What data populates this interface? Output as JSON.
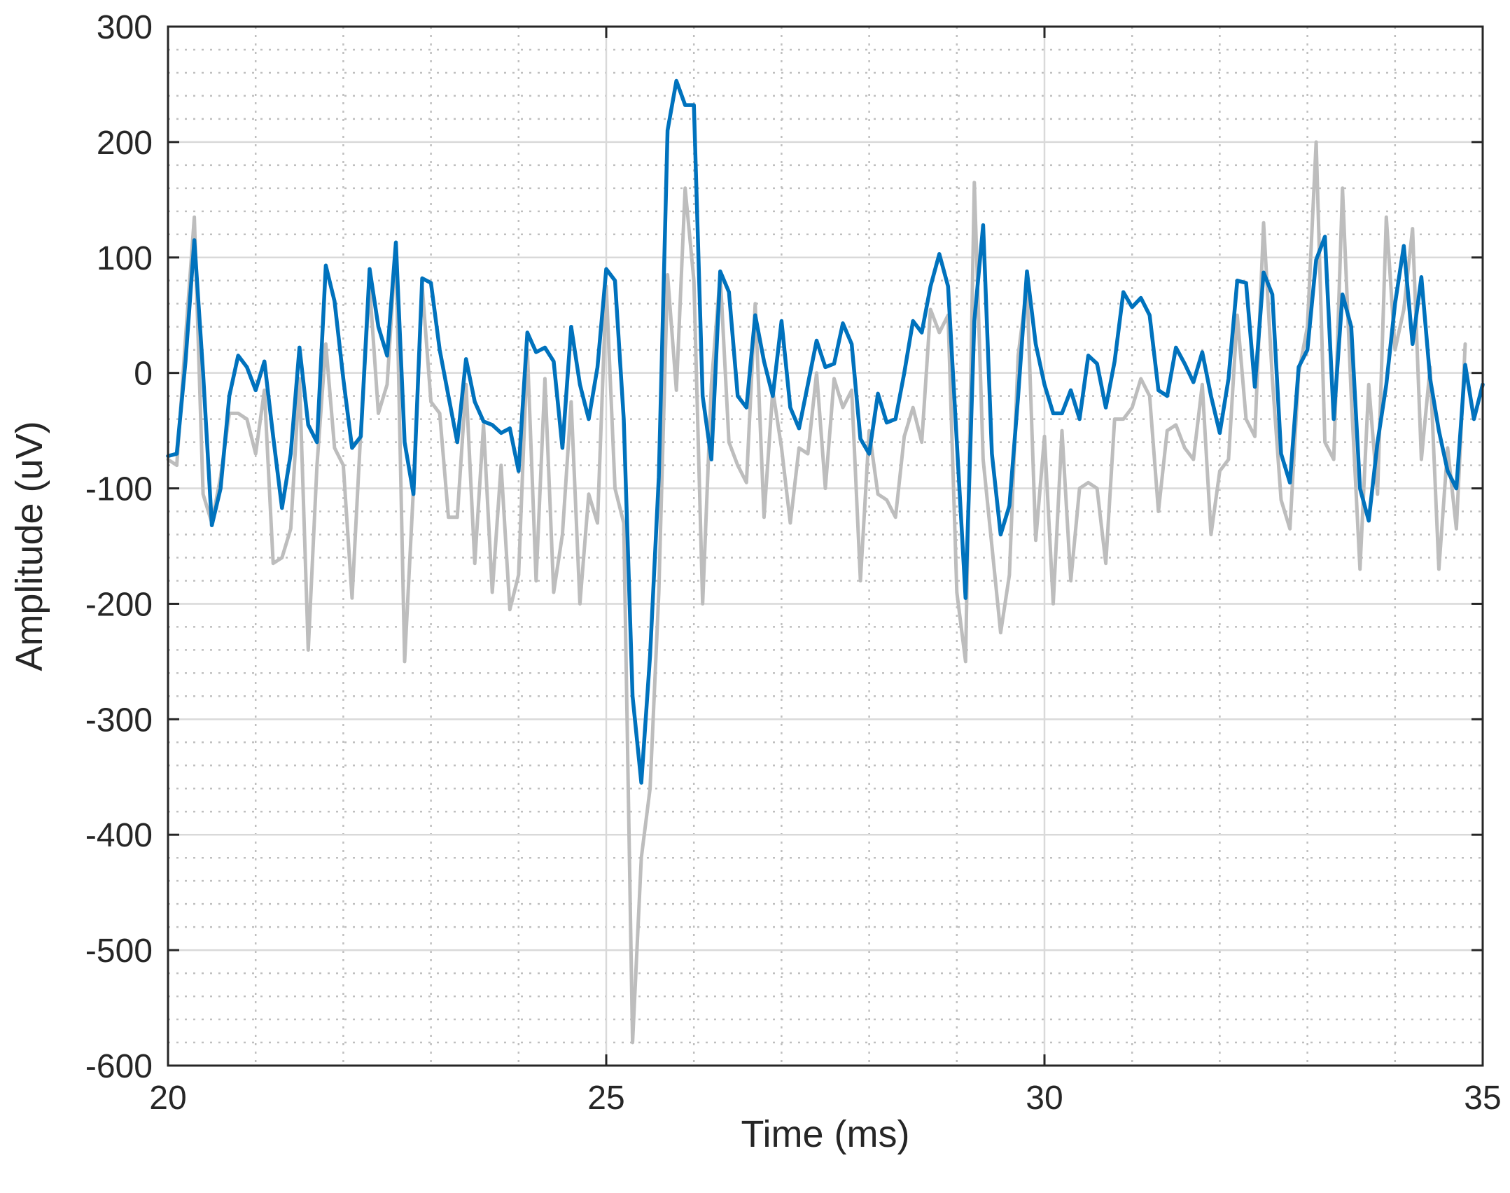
{
  "chart_data": {
    "type": "line",
    "title": "",
    "xlabel": "Time (ms)",
    "ylabel": "Amplitude (uV)",
    "xlim": [
      20,
      35
    ],
    "ylim": [
      -600,
      300
    ],
    "x_ticks": [
      20,
      25,
      30,
      35
    ],
    "x_tick_labels": [
      "20",
      "25",
      "30",
      "35"
    ],
    "y_ticks": [
      300,
      200,
      100,
      0,
      -100,
      -200,
      -300,
      -400,
      -500,
      -600
    ],
    "y_tick_labels": [
      "300",
      "200",
      "100",
      "0",
      "-100",
      "-200",
      "-300",
      "-400",
      "-500",
      "-600"
    ],
    "x_minor_step": 1,
    "y_minor_step": 20,
    "grid": true,
    "legend": "none",
    "series": [
      {
        "color": "#bdbdbd",
        "points": [
          [
            20.0,
            -75
          ],
          [
            20.1,
            -80
          ],
          [
            20.2,
            30
          ],
          [
            20.3,
            135
          ],
          [
            20.4,
            -105
          ],
          [
            20.5,
            -130
          ],
          [
            20.6,
            -90
          ],
          [
            20.7,
            -35
          ],
          [
            20.8,
            -35
          ],
          [
            20.9,
            -40
          ],
          [
            21.0,
            -70
          ],
          [
            21.1,
            -15
          ],
          [
            21.2,
            -165
          ],
          [
            21.3,
            -160
          ],
          [
            21.4,
            -135
          ],
          [
            21.5,
            -5
          ],
          [
            21.6,
            -240
          ],
          [
            21.7,
            -80
          ],
          [
            21.8,
            25
          ],
          [
            21.9,
            -65
          ],
          [
            22.0,
            -80
          ],
          [
            22.1,
            -195
          ],
          [
            22.2,
            -50
          ],
          [
            22.3,
            75
          ],
          [
            22.4,
            -35
          ],
          [
            22.5,
            -10
          ],
          [
            22.6,
            110
          ],
          [
            22.7,
            -250
          ],
          [
            22.8,
            -100
          ],
          [
            22.9,
            75
          ],
          [
            23.0,
            -25
          ],
          [
            23.1,
            -35
          ],
          [
            23.2,
            -125
          ],
          [
            23.3,
            -125
          ],
          [
            23.4,
            -10
          ],
          [
            23.5,
            -165
          ],
          [
            23.6,
            -45
          ],
          [
            23.7,
            -190
          ],
          [
            23.8,
            -80
          ],
          [
            23.9,
            -205
          ],
          [
            24.0,
            -175
          ],
          [
            24.1,
            20
          ],
          [
            24.2,
            -180
          ],
          [
            24.3,
            -5
          ],
          [
            24.4,
            -190
          ],
          [
            24.5,
            -140
          ],
          [
            24.6,
            -25
          ],
          [
            24.7,
            -200
          ],
          [
            24.8,
            -105
          ],
          [
            24.9,
            -130
          ],
          [
            25.0,
            75
          ],
          [
            25.1,
            -100
          ],
          [
            25.2,
            -130
          ],
          [
            25.3,
            -580
          ],
          [
            25.4,
            -420
          ],
          [
            25.5,
            -360
          ],
          [
            25.6,
            -190
          ],
          [
            25.7,
            85
          ],
          [
            25.8,
            -15
          ],
          [
            25.9,
            160
          ],
          [
            26.0,
            80
          ],
          [
            26.1,
            -200
          ],
          [
            26.2,
            -10
          ],
          [
            26.3,
            85
          ],
          [
            26.4,
            -60
          ],
          [
            26.5,
            -80
          ],
          [
            26.6,
            -95
          ],
          [
            26.7,
            60
          ],
          [
            26.8,
            -125
          ],
          [
            26.9,
            -15
          ],
          [
            27.0,
            -65
          ],
          [
            27.1,
            -130
          ],
          [
            27.2,
            -65
          ],
          [
            27.3,
            -70
          ],
          [
            27.4,
            0
          ],
          [
            27.5,
            -100
          ],
          [
            27.6,
            -5
          ],
          [
            27.7,
            -30
          ],
          [
            27.8,
            -15
          ],
          [
            27.9,
            -180
          ],
          [
            28.0,
            -50
          ],
          [
            28.1,
            -105
          ],
          [
            28.2,
            -110
          ],
          [
            28.3,
            -125
          ],
          [
            28.4,
            -55
          ],
          [
            28.5,
            -30
          ],
          [
            28.6,
            -60
          ],
          [
            28.7,
            55
          ],
          [
            28.8,
            35
          ],
          [
            28.9,
            50
          ],
          [
            29.0,
            -190
          ],
          [
            29.1,
            -250
          ],
          [
            29.2,
            165
          ],
          [
            29.3,
            -75
          ],
          [
            29.4,
            -150
          ],
          [
            29.5,
            -225
          ],
          [
            29.6,
            -175
          ],
          [
            29.7,
            15
          ],
          [
            29.8,
            75
          ],
          [
            29.9,
            -145
          ],
          [
            30.0,
            -55
          ],
          [
            30.1,
            -200
          ],
          [
            30.2,
            -50
          ],
          [
            30.3,
            -180
          ],
          [
            30.4,
            -100
          ],
          [
            30.5,
            -95
          ],
          [
            30.6,
            -100
          ],
          [
            30.7,
            -165
          ],
          [
            30.8,
            -40
          ],
          [
            30.9,
            -40
          ],
          [
            31.0,
            -30
          ],
          [
            31.1,
            -5
          ],
          [
            31.2,
            -20
          ],
          [
            31.3,
            -120
          ],
          [
            31.4,
            -50
          ],
          [
            31.5,
            -45
          ],
          [
            31.6,
            -65
          ],
          [
            31.7,
            -75
          ],
          [
            31.8,
            -10
          ],
          [
            31.9,
            -140
          ],
          [
            32.0,
            -85
          ],
          [
            32.1,
            -75
          ],
          [
            32.2,
            50
          ],
          [
            32.3,
            -40
          ],
          [
            32.4,
            -55
          ],
          [
            32.5,
            130
          ],
          [
            32.6,
            -5
          ],
          [
            32.7,
            -110
          ],
          [
            32.8,
            -135
          ],
          [
            32.9,
            0
          ],
          [
            33.0,
            40
          ],
          [
            33.1,
            200
          ],
          [
            33.2,
            -60
          ],
          [
            33.3,
            -75
          ],
          [
            33.4,
            160
          ],
          [
            33.5,
            -20
          ],
          [
            33.6,
            -170
          ],
          [
            33.7,
            -10
          ],
          [
            33.8,
            -105
          ],
          [
            33.9,
            135
          ],
          [
            34.0,
            20
          ],
          [
            34.1,
            55
          ],
          [
            34.2,
            125
          ],
          [
            34.3,
            -75
          ],
          [
            34.4,
            5
          ],
          [
            34.5,
            -170
          ],
          [
            34.6,
            -65
          ],
          [
            34.7,
            -135
          ],
          [
            34.8,
            25
          ]
        ]
      },
      {
        "color": "#0072bd",
        "points": [
          [
            20.0,
            -72
          ],
          [
            20.1,
            -70
          ],
          [
            20.2,
            10
          ],
          [
            20.3,
            115
          ],
          [
            20.4,
            0
          ],
          [
            20.5,
            -132
          ],
          [
            20.6,
            -100
          ],
          [
            20.7,
            -20
          ],
          [
            20.8,
            15
          ],
          [
            20.9,
            5
          ],
          [
            21.0,
            -15
          ],
          [
            21.1,
            10
          ],
          [
            21.2,
            -55
          ],
          [
            21.3,
            -117
          ],
          [
            21.4,
            -70
          ],
          [
            21.5,
            22
          ],
          [
            21.6,
            -45
          ],
          [
            21.7,
            -60
          ],
          [
            21.8,
            93
          ],
          [
            21.9,
            62
          ],
          [
            22.0,
            -5
          ],
          [
            22.1,
            -65
          ],
          [
            22.2,
            -55
          ],
          [
            22.3,
            90
          ],
          [
            22.4,
            40
          ],
          [
            22.5,
            15
          ],
          [
            22.6,
            113
          ],
          [
            22.7,
            -60
          ],
          [
            22.8,
            -105
          ],
          [
            22.9,
            82
          ],
          [
            23.0,
            78
          ],
          [
            23.1,
            20
          ],
          [
            23.2,
            -20
          ],
          [
            23.3,
            -60
          ],
          [
            23.4,
            12
          ],
          [
            23.5,
            -25
          ],
          [
            23.6,
            -42
          ],
          [
            23.7,
            -45
          ],
          [
            23.8,
            -52
          ],
          [
            23.9,
            -48
          ],
          [
            24.0,
            -85
          ],
          [
            24.1,
            35
          ],
          [
            24.2,
            18
          ],
          [
            24.3,
            22
          ],
          [
            24.4,
            10
          ],
          [
            24.5,
            -65
          ],
          [
            24.6,
            40
          ],
          [
            24.7,
            -10
          ],
          [
            24.8,
            -40
          ],
          [
            24.9,
            5
          ],
          [
            25.0,
            90
          ],
          [
            25.1,
            80
          ],
          [
            25.2,
            -40
          ],
          [
            25.3,
            -280
          ],
          [
            25.4,
            -355
          ],
          [
            25.5,
            -245
          ],
          [
            25.6,
            -90
          ],
          [
            25.7,
            210
          ],
          [
            25.8,
            253
          ],
          [
            25.9,
            232
          ],
          [
            26.0,
            232
          ],
          [
            26.1,
            -20
          ],
          [
            26.2,
            -75
          ],
          [
            26.3,
            88
          ],
          [
            26.4,
            70
          ],
          [
            26.5,
            -20
          ],
          [
            26.6,
            -30
          ],
          [
            26.7,
            50
          ],
          [
            26.8,
            10
          ],
          [
            26.9,
            -20
          ],
          [
            27.0,
            45
          ],
          [
            27.1,
            -30
          ],
          [
            27.2,
            -48
          ],
          [
            27.3,
            -10
          ],
          [
            27.4,
            28
          ],
          [
            27.5,
            5
          ],
          [
            27.6,
            8
          ],
          [
            27.7,
            43
          ],
          [
            27.8,
            25
          ],
          [
            27.9,
            -57
          ],
          [
            28.0,
            -70
          ],
          [
            28.1,
            -18
          ],
          [
            28.2,
            -43
          ],
          [
            28.3,
            -40
          ],
          [
            28.4,
            0
          ],
          [
            28.5,
            45
          ],
          [
            28.6,
            35
          ],
          [
            28.7,
            75
          ],
          [
            28.8,
            103
          ],
          [
            28.9,
            75
          ],
          [
            29.0,
            -60
          ],
          [
            29.1,
            -195
          ],
          [
            29.2,
            45
          ],
          [
            29.3,
            128
          ],
          [
            29.4,
            -70
          ],
          [
            29.5,
            -140
          ],
          [
            29.6,
            -115
          ],
          [
            29.7,
            -20
          ],
          [
            29.8,
            88
          ],
          [
            29.9,
            25
          ],
          [
            30.0,
            -10
          ],
          [
            30.1,
            -35
          ],
          [
            30.2,
            -35
          ],
          [
            30.3,
            -15
          ],
          [
            30.4,
            -40
          ],
          [
            30.5,
            15
          ],
          [
            30.6,
            8
          ],
          [
            30.7,
            -30
          ],
          [
            30.8,
            10
          ],
          [
            30.9,
            70
          ],
          [
            31.0,
            57
          ],
          [
            31.1,
            65
          ],
          [
            31.2,
            50
          ],
          [
            31.3,
            -15
          ],
          [
            31.4,
            -20
          ],
          [
            31.5,
            22
          ],
          [
            31.6,
            8
          ],
          [
            31.7,
            -8
          ],
          [
            31.8,
            18
          ],
          [
            31.9,
            -20
          ],
          [
            32.0,
            -52
          ],
          [
            32.1,
            -5
          ],
          [
            32.2,
            80
          ],
          [
            32.3,
            78
          ],
          [
            32.4,
            -12
          ],
          [
            32.5,
            87
          ],
          [
            32.6,
            68
          ],
          [
            32.7,
            -70
          ],
          [
            32.8,
            -95
          ],
          [
            32.9,
            5
          ],
          [
            33.0,
            20
          ],
          [
            33.1,
            98
          ],
          [
            33.2,
            118
          ],
          [
            33.3,
            -40
          ],
          [
            33.4,
            68
          ],
          [
            33.5,
            40
          ],
          [
            33.6,
            -100
          ],
          [
            33.7,
            -128
          ],
          [
            33.8,
            -60
          ],
          [
            33.9,
            -10
          ],
          [
            34.0,
            60
          ],
          [
            34.1,
            110
          ],
          [
            34.2,
            25
          ],
          [
            34.3,
            83
          ],
          [
            34.4,
            -5
          ],
          [
            34.5,
            -50
          ],
          [
            34.6,
            -85
          ],
          [
            34.7,
            -100
          ],
          [
            34.8,
            7
          ],
          [
            34.9,
            -40
          ],
          [
            35.0,
            -10
          ]
        ]
      }
    ]
  }
}
